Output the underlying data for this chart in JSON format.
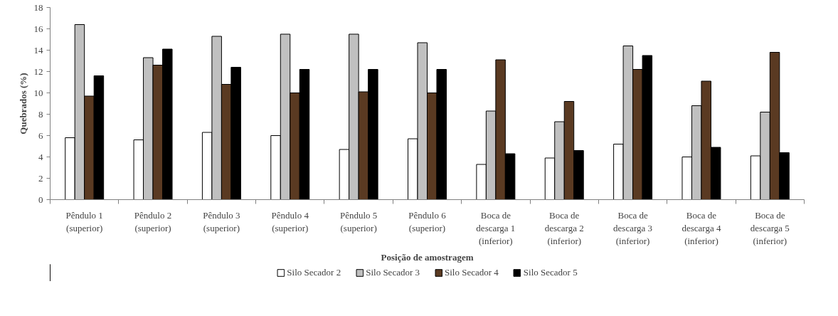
{
  "chart_data": {
    "type": "bar",
    "xlabel": "Posição de amostragem",
    "ylabel": "Quebrados (%)",
    "categories": [
      "Pêndulo 1\n(superior)",
      "Pêndulo 2\n(superior)",
      "Pêndulo 3\n(superior)",
      "Pêndulo 4\n(superior)",
      "Pêndulo 5\n(superior)",
      "Pêndulo 6\n(superior)",
      "Boca de\ndescarga 1\n(inferior)",
      "Boca de\ndescarga 2\n(inferior)",
      "Boca de\ndescarga 3\n(inferior)",
      "Boca de\ndescarga 4\n(inferior)",
      "Boca de\ndescarga 5\n(inferior)"
    ],
    "series": [
      {
        "name": "Silo Secador 2",
        "color": "#ffffff",
        "values": [
          5.8,
          5.6,
          6.3,
          6.0,
          4.7,
          5.7,
          3.3,
          3.9,
          5.2,
          4.0,
          4.1
        ]
      },
      {
        "name": "Silo Secador 3",
        "color": "#c0c0c0",
        "values": [
          16.4,
          13.3,
          15.3,
          15.5,
          15.5,
          14.7,
          8.3,
          7.3,
          14.4,
          8.8,
          8.2
        ]
      },
      {
        "name": "Silo Secador 4",
        "color": "#5a3a22",
        "values": [
          9.7,
          12.6,
          10.8,
          10.0,
          10.1,
          10.0,
          13.1,
          9.2,
          12.2,
          11.1,
          13.8
        ]
      },
      {
        "name": "Silo Secador 5",
        "color": "#000000",
        "values": [
          11.6,
          14.1,
          12.4,
          12.2,
          12.2,
          12.2,
          4.3,
          4.6,
          13.5,
          4.9,
          4.4
        ]
      }
    ],
    "ylim": [
      0,
      18
    ],
    "yticks": [
      0,
      2,
      4,
      6,
      8,
      10,
      12,
      14,
      16,
      18
    ],
    "grid": false,
    "legend": "bottom"
  }
}
